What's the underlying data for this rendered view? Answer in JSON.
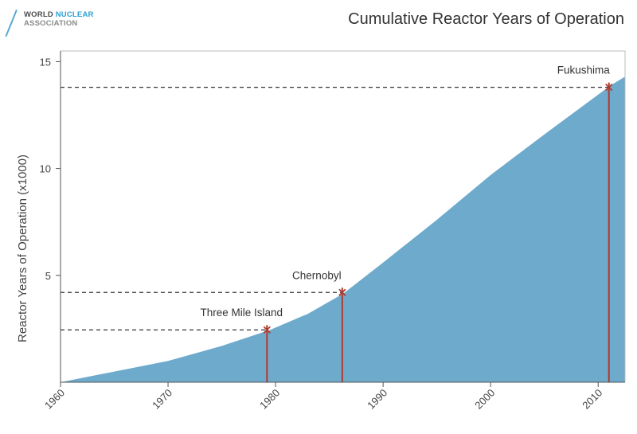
{
  "logo": {
    "word_world": "WORLD",
    "word_nuclear": "NUCLEAR",
    "word_association": "ASSOCIATION"
  },
  "chart_data": {
    "type": "area",
    "title": "Cumulative Reactor Years of Operation",
    "xlabel": "",
    "ylabel": "Reactor Years of Operation (x1000)",
    "xlim": [
      1960,
      2012.5
    ],
    "ylim": [
      0,
      15.5
    ],
    "x_ticks": [
      1960,
      1970,
      1980,
      1990,
      2000,
      2010
    ],
    "y_ticks": [
      5,
      10,
      15
    ],
    "grid": false,
    "x": [
      1960,
      1965,
      1970,
      1975,
      1979.5,
      1983,
      1986.3,
      1990,
      1995,
      2000,
      2005,
      2011.2,
      2012.5
    ],
    "values": [
      0,
      0.5,
      1.0,
      1.7,
      2.45,
      3.2,
      4.15,
      5.6,
      7.6,
      9.7,
      11.6,
      13.9,
      14.3
    ],
    "area_color": "#6eaacc",
    "marker_color": "#b03a2e",
    "annotations": [
      {
        "label": "Three Mile Island",
        "x": 1979.2,
        "y": 2.45
      },
      {
        "label": "Chernobyl",
        "x": 1986.2,
        "y": 4.2
      },
      {
        "label": "Fukushima",
        "x": 2011.0,
        "y": 13.8
      }
    ]
  }
}
